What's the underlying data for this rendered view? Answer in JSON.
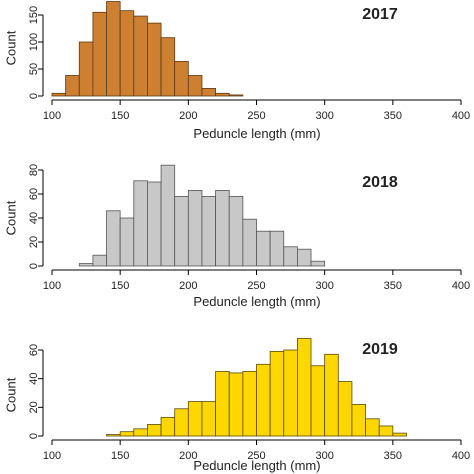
{
  "chart_data": [
    {
      "type": "bar",
      "title": "2017",
      "xlabel": "Peduncle length (mm)",
      "ylabel": "Count",
      "xlim": [
        100,
        400
      ],
      "ylim": [
        0,
        150
      ],
      "xticks": [
        100,
        150,
        200,
        250,
        300,
        350,
        400
      ],
      "yticks": [
        0,
        50,
        100,
        150
      ],
      "bin_width": 10,
      "bins_start": [
        100,
        110,
        120,
        130,
        140,
        150,
        160,
        170,
        180,
        190,
        200,
        210,
        220,
        230
      ],
      "values": [
        5,
        38,
        100,
        155,
        175,
        158,
        148,
        135,
        108,
        64,
        38,
        14,
        5,
        2
      ],
      "color": "#CD7F32",
      "edge_color": "#5a3a14"
    },
    {
      "type": "bar",
      "title": "2018",
      "xlabel": "Peduncle length (mm)",
      "ylabel": "Count",
      "xlim": [
        100,
        400
      ],
      "ylim": [
        0,
        80
      ],
      "xticks": [
        100,
        150,
        200,
        250,
        300,
        350,
        400
      ],
      "yticks": [
        0,
        20,
        40,
        60,
        80
      ],
      "bin_width": 10,
      "bins_start": [
        120,
        130,
        140,
        150,
        160,
        170,
        180,
        190,
        200,
        210,
        220,
        230,
        240,
        250,
        260,
        270,
        280,
        290
      ],
      "values": [
        2,
        9,
        46,
        40,
        71,
        70,
        84,
        58,
        63,
        58,
        63,
        58,
        39,
        29,
        29,
        16,
        14,
        4
      ],
      "color": "#C8C8C8",
      "edge_color": "#555555"
    },
    {
      "type": "bar",
      "title": "2019",
      "xlabel": "Peduncle length (mm)",
      "ylabel": "Count",
      "xlim": [
        100,
        400
      ],
      "ylim": [
        0,
        60
      ],
      "xticks": [
        100,
        150,
        200,
        250,
        300,
        350,
        400
      ],
      "yticks": [
        0,
        20,
        40,
        60
      ],
      "bin_width": 10,
      "bins_start": [
        140,
        150,
        160,
        170,
        180,
        190,
        200,
        210,
        220,
        230,
        240,
        250,
        260,
        270,
        280,
        290,
        300,
        310,
        320,
        330,
        340,
        350
      ],
      "values": [
        1,
        3,
        5,
        8,
        13,
        19,
        24,
        24,
        45,
        44,
        45,
        50,
        59,
        60,
        68,
        49,
        57,
        38,
        22,
        12,
        7,
        2
      ],
      "color": "#FFD700",
      "edge_color": "#5a4a00"
    }
  ]
}
